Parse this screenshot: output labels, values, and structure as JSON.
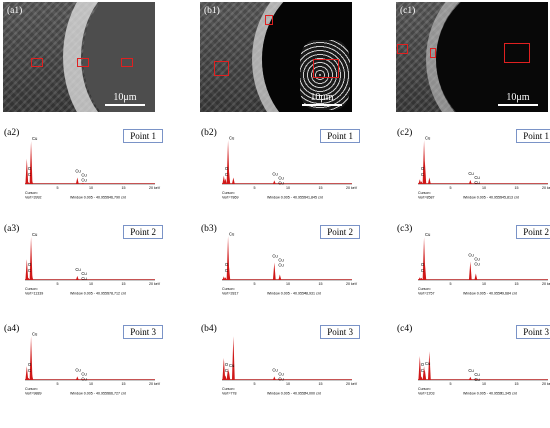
{
  "sem": [
    {
      "label": "(a1)",
      "scale": "10μm"
    },
    {
      "label": "(b1)",
      "scale": "10μm"
    },
    {
      "label": "(c1)",
      "scale": "10μm"
    }
  ],
  "rows": [
    [
      {
        "label": "(a2)",
        "point": "Point 1",
        "cursor": "Cursor=",
        "vert": "Vert=3992",
        "window": "Window 0.005 - 40.955=",
        "count": "146,790 cnt"
      },
      {
        "label": "(b2)",
        "point": "Point 1",
        "cursor": "Cursor=",
        "vert": "Vert=7869",
        "window": "Window 0.005 - 40.955=",
        "count": "141,845 cnt"
      },
      {
        "label": "(c2)",
        "point": "Point 1",
        "cursor": "Cursor=",
        "vert": "Vert=8587",
        "window": "Window 0.005 - 40.955=",
        "count": "145,813 cnt"
      }
    ],
    [
      {
        "label": "(a3)",
        "point": "Point 2",
        "cursor": "Cursor=",
        "vert": "Vert=11339",
        "window": "Window 0.005 - 40.955=",
        "count": "178,712 cnt"
      },
      {
        "label": "(b3)",
        "point": "Point 2",
        "cursor": "Cursor=",
        "vert": "Vert=2817",
        "window": "Window 0.005 - 40.955=",
        "count": "48,931 cnt"
      },
      {
        "label": "(c3)",
        "point": "Point 2",
        "cursor": "Cursor=",
        "vert": "Vert=2757",
        "window": "Window 0.005 - 40.955=",
        "count": "49,684 cnt"
      }
    ],
    [
      {
        "label": "(a4)",
        "point": "Point 3",
        "cursor": "Cursor=",
        "vert": "Vert=9889",
        "window": "Window 0.005 - 40.955=",
        "count": "166,727 cnt"
      },
      {
        "label": "(b4)",
        "point": "Point 3",
        "cursor": "Cursor=",
        "vert": "Vert=778",
        "window": "Window 0.005 - 40.955=",
        "count": "24,000 cnt"
      },
      {
        "label": "(c4)",
        "point": "Point 3",
        "cursor": "Cursor=",
        "vert": "Vert=1203",
        "window": "Window 0.005 - 40.955=",
        "count": "31,345 cnt"
      }
    ]
  ],
  "axis": {
    "ticks": [
      "5",
      "10",
      "15"
    ],
    "unit": "20 keV"
  },
  "peak_labels": {
    "cu": "Cu",
    "cu_l": "Cu",
    "o": "O",
    "c": "C"
  },
  "chart_data": [
    {
      "type": "bar",
      "panel": "(a2)",
      "x": [
        0.28,
        0.52,
        0.93,
        1.05,
        8.05,
        8.9
      ],
      "values": [
        55,
        4,
        93,
        8,
        14,
        2
      ]
    },
    {
      "type": "bar",
      "panel": "(b2)",
      "x": [
        0.28,
        0.52,
        0.93,
        1.05,
        1.75,
        8.05,
        8.9
      ],
      "values": [
        18,
        12,
        95,
        30,
        14,
        8,
        3
      ]
    },
    {
      "type": "bar",
      "panel": "(c2)",
      "x": [
        0.28,
        0.52,
        0.93,
        1.05,
        1.75,
        8.05,
        8.9
      ],
      "values": [
        10,
        6,
        95,
        50,
        14,
        9,
        3
      ]
    },
    {
      "type": "bar",
      "panel": "(a3)",
      "x": [
        0.28,
        0.52,
        0.93,
        1.05,
        8.05,
        8.9
      ],
      "values": [
        45,
        5,
        94,
        12,
        9,
        2
      ]
    },
    {
      "type": "bar",
      "panel": "(b3)",
      "x": [
        0.28,
        0.52,
        0.93,
        1.05,
        8.05,
        8.9
      ],
      "values": [
        8,
        6,
        95,
        32,
        38,
        12
      ]
    },
    {
      "type": "bar",
      "panel": "(c3)",
      "x": [
        0.28,
        0.52,
        0.93,
        1.05,
        8.05,
        8.9
      ],
      "values": [
        6,
        5,
        93,
        38,
        40,
        14
      ]
    },
    {
      "type": "bar",
      "panel": "(a4)",
      "x": [
        0.28,
        0.52,
        0.93,
        1.05,
        8.05,
        8.9
      ],
      "values": [
        30,
        5,
        95,
        14,
        8,
        2
      ]
    },
    {
      "type": "bar",
      "panel": "(b4)",
      "x": [
        0.28,
        0.52,
        0.93,
        1.05,
        1.75,
        8.05,
        8.9
      ],
      "values": [
        48,
        10,
        26,
        20,
        95,
        8,
        3
      ]
    },
    {
      "type": "bar",
      "panel": "(c4)",
      "x": [
        0.28,
        0.52,
        0.93,
        1.05,
        1.75,
        8.05,
        8.9
      ],
      "values": [
        52,
        8,
        30,
        22,
        62,
        7,
        3
      ]
    }
  ]
}
